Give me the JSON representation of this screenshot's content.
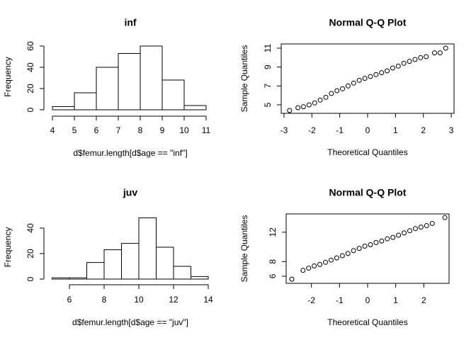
{
  "chart_data": [
    {
      "type": "histogram",
      "title": "inf",
      "x_label": "d$femur.length[d$age == \"inf\"]",
      "y_label": "Frequency",
      "bins": [
        4,
        5,
        6,
        7,
        8,
        9,
        10,
        11
      ],
      "values": [
        3,
        16,
        40,
        53,
        60,
        28,
        4
      ],
      "xlim": [
        4,
        11
      ],
      "ylim": [
        0,
        62
      ],
      "xticks": [
        4,
        5,
        6,
        7,
        8,
        9,
        10,
        11
      ],
      "yticks": [
        0,
        20,
        40,
        60
      ],
      "color": "#ffffff"
    },
    {
      "type": "scatter",
      "title": "Normal Q-Q Plot",
      "x_label": "Theoretical Quantiles",
      "y_label": "Sample Quantiles",
      "x": [
        -2.8,
        -2.5,
        -2.3,
        -2.1,
        -1.9,
        -1.7,
        -1.5,
        -1.3,
        -1.1,
        -0.9,
        -0.7,
        -0.5,
        -0.3,
        -0.1,
        0.1,
        0.3,
        0.5,
        0.7,
        0.9,
        1.1,
        1.3,
        1.5,
        1.7,
        1.9,
        2.1,
        2.4,
        2.6,
        2.8
      ],
      "values": [
        4.4,
        4.7,
        4.8,
        5.0,
        5.2,
        5.5,
        5.8,
        6.2,
        6.5,
        6.7,
        7.0,
        7.3,
        7.6,
        7.8,
        8.0,
        8.2,
        8.4,
        8.6,
        8.9,
        9.1,
        9.4,
        9.6,
        9.8,
        10.0,
        10.1,
        10.5,
        10.5,
        11.0
      ],
      "xlim": [
        -3.1,
        3.1
      ],
      "ylim": [
        4.1,
        11.45
      ],
      "xticks": [
        -3,
        -2,
        -1,
        0,
        1,
        2,
        3
      ],
      "yticks": [
        5,
        7,
        9,
        11
      ],
      "color": "#000000"
    },
    {
      "type": "histogram",
      "title": "juv",
      "x_label": "d$femur.length[d$age == \"juv\"]",
      "y_label": "Frequency",
      "bins": [
        5,
        6,
        7,
        8,
        9,
        10,
        11,
        12,
        13,
        14
      ],
      "values": [
        1,
        1,
        13,
        23,
        28,
        48,
        25,
        10,
        2
      ],
      "xlim": [
        5,
        14
      ],
      "ylim": [
        0,
        50
      ],
      "xticks": [
        6,
        8,
        10,
        12,
        14
      ],
      "yticks": [
        0,
        20,
        40
      ],
      "color": "#ffffff"
    },
    {
      "type": "scatter",
      "title": "Normal Q-Q Plot",
      "x_label": "Theoretical Quantiles",
      "y_label": "Sample Quantiles",
      "x": [
        -2.7,
        -2.3,
        -2.1,
        -1.9,
        -1.7,
        -1.5,
        -1.3,
        -1.1,
        -0.9,
        -0.7,
        -0.5,
        -0.3,
        -0.1,
        0.1,
        0.3,
        0.5,
        0.7,
        0.9,
        1.1,
        1.3,
        1.5,
        1.7,
        1.9,
        2.1,
        2.3,
        2.75
      ],
      "values": [
        5.6,
        6.8,
        7.1,
        7.4,
        7.6,
        7.9,
        8.2,
        8.5,
        8.8,
        9.1,
        9.5,
        9.8,
        10.1,
        10.3,
        10.6,
        10.8,
        11.1,
        11.3,
        11.6,
        11.9,
        12.2,
        12.5,
        12.7,
        12.9,
        13.2,
        14.0
      ],
      "xlim": [
        -2.9,
        2.9
      ],
      "ylim": [
        5.03,
        14.5
      ],
      "xticks": [
        -2,
        -1,
        0,
        1,
        2
      ],
      "yticks": [
        6,
        8,
        12
      ],
      "color": "#000000"
    }
  ]
}
